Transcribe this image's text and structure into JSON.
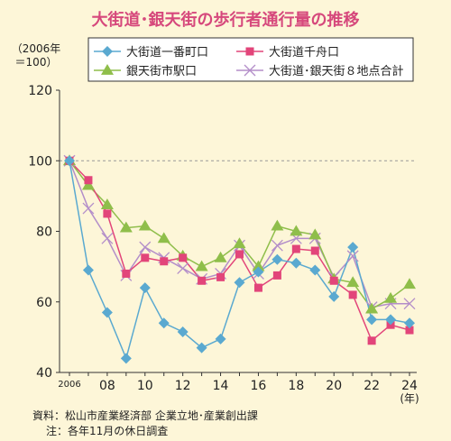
{
  "chart_data": {
    "type": "line",
    "title": "大街道･銀天街の歩行者通行量の推移",
    "ylabel": "（2006年\n＝100）",
    "xunit": "(年)",
    "ylim": [
      40,
      120
    ],
    "yticks": [
      40,
      60,
      80,
      100,
      120
    ],
    "reference_line": 100,
    "x": [
      2006,
      2007,
      2008,
      2009,
      2010,
      2011,
      2012,
      2013,
      2014,
      2015,
      2016,
      2017,
      2018,
      2019,
      2020,
      2021,
      2022,
      2023,
      2024
    ],
    "xtick_labels": [
      {
        "x": 2006,
        "label": "2006"
      },
      {
        "x": 2008,
        "label": "08"
      },
      {
        "x": 2010,
        "label": "10"
      },
      {
        "x": 2012,
        "label": "12"
      },
      {
        "x": 2014,
        "label": "14"
      },
      {
        "x": 2016,
        "label": "16"
      },
      {
        "x": 2018,
        "label": "18"
      },
      {
        "x": 2020,
        "label": "20"
      },
      {
        "x": 2022,
        "label": "22"
      },
      {
        "x": 2024,
        "label": "24"
      }
    ],
    "legend_position": "top",
    "series": [
      {
        "name": "大街道一番町口",
        "color": "#5aa9d0",
        "marker": "diamond",
        "values": [
          100,
          69,
          57,
          44,
          64,
          54,
          51.5,
          47,
          49.5,
          65.5,
          68.5,
          72,
          71,
          69,
          61.5,
          75.5,
          55,
          55,
          54
        ]
      },
      {
        "name": "大街道千舟口",
        "color": "#e2457a",
        "marker": "square",
        "values": [
          100,
          94.5,
          85,
          68,
          72.5,
          71.5,
          72.5,
          66,
          67,
          73.5,
          64,
          67.5,
          75,
          74.5,
          66,
          62,
          49,
          53.5,
          52
        ]
      },
      {
        "name": "銀天街市駅口",
        "color": "#8fbe4a",
        "marker": "triangle",
        "values": [
          100,
          93,
          87.5,
          81,
          81.5,
          78,
          73,
          70,
          72.5,
          76.5,
          70,
          81.5,
          80,
          79,
          66.5,
          65.5,
          58,
          61,
          65
        ]
      },
      {
        "name": "大街道･銀天街８地点合計",
        "color": "#b38ec9",
        "marker": "cross",
        "values": [
          100,
          86.5,
          78,
          67.5,
          75.5,
          72.5,
          69.5,
          66.5,
          68,
          76,
          68,
          76,
          78,
          78,
          67,
          73,
          58.5,
          59.5,
          59.5
        ]
      }
    ]
  },
  "notes": {
    "source": "資料：松山市産業経済部 企業立地･産業創出課",
    "note": "注：各年11月の休日調査"
  }
}
